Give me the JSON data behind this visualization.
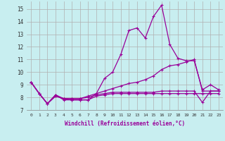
{
  "title": "",
  "xlabel": "Windchill (Refroidissement éolien,°C)",
  "ylabel": "",
  "bg_color": "#c8eef0",
  "grid_color": "#b0b0b0",
  "line_color": "#990099",
  "xlim": [
    -0.5,
    23.5
  ],
  "ylim": [
    7,
    15.6
  ],
  "yticks": [
    7,
    8,
    9,
    10,
    11,
    12,
    13,
    14,
    15
  ],
  "xticks": [
    0,
    1,
    2,
    3,
    4,
    5,
    6,
    7,
    8,
    9,
    10,
    11,
    12,
    13,
    14,
    15,
    16,
    17,
    18,
    19,
    20,
    21,
    22,
    23
  ],
  "series": [
    [
      9.2,
      8.3,
      7.5,
      8.2,
      7.8,
      7.8,
      7.8,
      7.8,
      8.3,
      9.5,
      10.0,
      11.4,
      13.3,
      13.5,
      12.7,
      14.4,
      15.3,
      12.2,
      11.1,
      10.9,
      10.9,
      8.6,
      9.0,
      8.6
    ],
    [
      9.2,
      8.3,
      7.5,
      8.2,
      7.9,
      7.9,
      7.9,
      8.1,
      8.3,
      8.5,
      8.7,
      8.9,
      9.1,
      9.2,
      9.4,
      9.7,
      10.2,
      10.5,
      10.6,
      10.8,
      11.0,
      8.5,
      8.5,
      8.5
    ],
    [
      9.2,
      8.3,
      7.5,
      8.1,
      7.9,
      7.9,
      7.9,
      8.0,
      8.2,
      8.3,
      8.4,
      8.4,
      8.4,
      8.4,
      8.4,
      8.4,
      8.5,
      8.5,
      8.5,
      8.5,
      8.5,
      7.6,
      8.5,
      8.5
    ],
    [
      9.2,
      8.3,
      7.5,
      8.1,
      7.9,
      7.8,
      7.8,
      7.8,
      8.1,
      8.2,
      8.3,
      8.3,
      8.3,
      8.3,
      8.3,
      8.3,
      8.3,
      8.3,
      8.3,
      8.3,
      8.3,
      8.3,
      8.3,
      8.3
    ]
  ]
}
